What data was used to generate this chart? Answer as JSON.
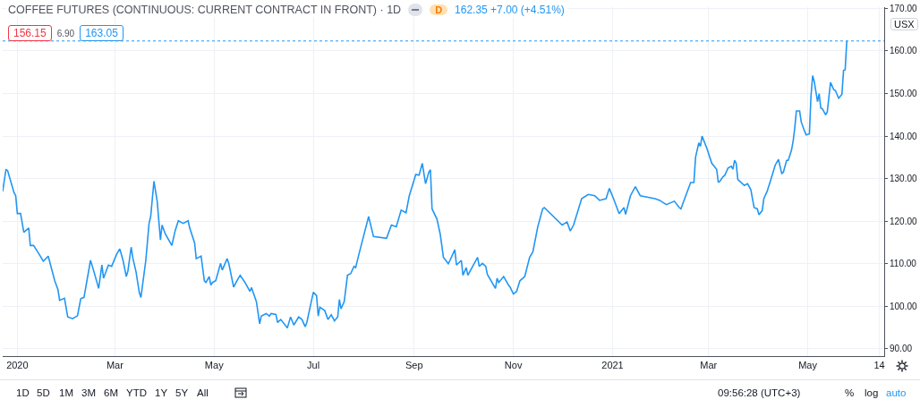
{
  "chart_data": {
    "type": "line",
    "title": "COFFEE FUTURES (CONTINUOUS: CURRENT CONTRACT IN FRONT) · 1D",
    "x": [
      "2019-12-23",
      "2019-12-25",
      "2019-12-26",
      "2019-12-30",
      "2019-12-31",
      "2020-01-01",
      "2020-01-03",
      "2020-01-05",
      "2020-01-08",
      "2020-01-09",
      "2020-01-11",
      "2020-01-14",
      "2020-01-17",
      "2020-01-20",
      "2020-01-24",
      "2020-01-26",
      "2020-01-27",
      "2020-01-30",
      "2020-02-01",
      "2020-02-04",
      "2020-02-07",
      "2020-02-09",
      "2020-02-11",
      "2020-02-15",
      "2020-02-17",
      "2020-02-20",
      "2020-02-22",
      "2020-02-23",
      "2020-02-26",
      "2020-02-28",
      "2020-03-02",
      "2020-03-04",
      "2020-03-06",
      "2020-03-08",
      "2020-03-09",
      "2020-03-11",
      "2020-03-12",
      "2020-03-14",
      "2020-03-16",
      "2020-03-17",
      "2020-03-20",
      "2020-03-22",
      "2020-03-23",
      "2020-03-25",
      "2020-03-27",
      "2020-03-29",
      "2020-03-30",
      "2020-04-01",
      "2020-04-05",
      "2020-04-07",
      "2020-04-09",
      "2020-04-12",
      "2020-04-15",
      "2020-04-16",
      "2020-04-19",
      "2020-04-20",
      "2020-04-23",
      "2020-04-25",
      "2020-04-26",
      "2020-04-28",
      "2020-04-29",
      "2020-04-30",
      "2020-05-02",
      "2020-05-05",
      "2020-05-06",
      "2020-05-09",
      "2020-05-10",
      "2020-05-13",
      "2020-05-15",
      "2020-05-17",
      "2020-05-20",
      "2020-05-23",
      "2020-05-24",
      "2020-05-27",
      "2020-05-29",
      "2020-05-30",
      "2020-06-02",
      "2020-06-04",
      "2020-06-05",
      "2020-06-08",
      "2020-06-09",
      "2020-06-11",
      "2020-06-15",
      "2020-06-17",
      "2020-06-19",
      "2020-06-22",
      "2020-06-24",
      "2020-06-26",
      "2020-06-27",
      "2020-06-29",
      "2020-07-01",
      "2020-07-03",
      "2020-07-04",
      "2020-07-05",
      "2020-07-08",
      "2020-07-10",
      "2020-07-12",
      "2020-07-14",
      "2020-07-16",
      "2020-07-17",
      "2020-07-18",
      "2020-07-20",
      "2020-07-22",
      "2020-07-24",
      "2020-07-26",
      "2020-07-27",
      "2020-07-29",
      "2020-08-04",
      "2020-08-07",
      "2020-08-15",
      "2020-08-18",
      "2020-08-21",
      "2020-08-24",
      "2020-08-27",
      "2020-08-29",
      "2020-09-02",
      "2020-09-04",
      "2020-09-06",
      "2020-09-08",
      "2020-09-10",
      "2020-09-11",
      "2020-09-12",
      "2020-09-15",
      "2020-09-17",
      "2020-09-19",
      "2020-09-22",
      "2020-09-23",
      "2020-09-26",
      "2020-09-27",
      "2020-09-30",
      "2020-10-01",
      "2020-10-03",
      "2020-10-04",
      "2020-10-07",
      "2020-10-10",
      "2020-10-11",
      "2020-10-13",
      "2020-10-15",
      "2020-10-16",
      "2020-10-21",
      "2020-10-22",
      "2020-10-23",
      "2020-10-26",
      "2020-10-29",
      "2020-10-30",
      "2020-11-01",
      "2020-11-03",
      "2020-11-05",
      "2020-11-08",
      "2020-11-11",
      "2020-11-13",
      "2020-11-16",
      "2020-11-19",
      "2020-11-20",
      "2020-12-01",
      "2020-12-04",
      "2020-12-06",
      "2020-12-08",
      "2020-12-13",
      "2020-12-17",
      "2020-12-21",
      "2020-12-24",
      "2020-12-28",
      "2020-12-30",
      "2021-01-02",
      "2021-01-05",
      "2021-01-08",
      "2021-01-09",
      "2021-01-12",
      "2021-01-15",
      "2021-01-18",
      "2021-01-27",
      "2021-01-30",
      "2021-02-03",
      "2021-02-08",
      "2021-02-11",
      "2021-02-12",
      "2021-02-15",
      "2021-02-18",
      "2021-02-20",
      "2021-02-21",
      "2021-02-23",
      "2021-02-24",
      "2021-02-25",
      "2021-02-28",
      "2021-03-03",
      "2021-03-06",
      "2021-03-07",
      "2021-03-08",
      "2021-03-10",
      "2021-03-11",
      "2021-03-13",
      "2021-03-15",
      "2021-03-16",
      "2021-03-17",
      "2021-03-18",
      "2021-03-19",
      "2021-03-23",
      "2021-03-25",
      "2021-03-27",
      "2021-03-29",
      "2021-03-31",
      "2021-04-01",
      "2021-04-03",
      "2021-04-04",
      "2021-04-06",
      "2021-04-08",
      "2021-04-11",
      "2021-04-13",
      "2021-04-15",
      "2021-04-16",
      "2021-04-18",
      "2021-04-19",
      "2021-04-21",
      "2021-04-22",
      "2021-04-23",
      "2021-04-24",
      "2021-04-26",
      "2021-04-27",
      "2021-04-29",
      "2021-04-30",
      "2021-05-02",
      "2021-05-03",
      "2021-05-04",
      "2021-05-05",
      "2021-05-07",
      "2021-05-08",
      "2021-05-09",
      "2021-05-10",
      "2021-05-12",
      "2021-05-13",
      "2021-05-15",
      "2021-05-17",
      "2021-05-18",
      "2021-05-20",
      "2021-05-22",
      "2021-05-23",
      "2021-05-24",
      "2021-05-25"
    ],
    "series": [
      {
        "color": "#2196f3",
        "values": [
          127.0,
          132.1,
          131.9,
          126.7,
          126.0,
          121.8,
          121.8,
          117.4,
          118.4,
          114.3,
          114.3,
          112.5,
          110.6,
          111.8,
          106.0,
          103.9,
          101.4,
          101.9,
          97.5,
          97.1,
          97.8,
          101.8,
          102.1,
          110.8,
          108.3,
          104.2,
          109.7,
          106.6,
          109.7,
          109.4,
          112.2,
          113.5,
          110.8,
          107.0,
          108.3,
          113.9,
          111.4,
          108.1,
          103.2,
          102.1,
          110.8,
          119.5,
          121.1,
          129.4,
          124.7,
          115.6,
          119.1,
          117.0,
          114.3,
          117.7,
          120.1,
          119.5,
          120.1,
          118.4,
          114.9,
          111.2,
          111.8,
          106.0,
          105.6,
          107.0,
          105.0,
          105.6,
          106.0,
          110.1,
          108.5,
          111.2,
          110.1,
          104.5,
          106.0,
          107.3,
          105.6,
          103.5,
          104.4,
          101.1,
          95.9,
          97.7,
          98.3,
          97.7,
          98.3,
          98.1,
          96.2,
          96.9,
          94.9,
          97.5,
          95.6,
          97.5,
          96.9,
          95.2,
          96.2,
          99.8,
          103.3,
          102.5,
          97.7,
          99.8,
          99.0,
          96.9,
          98.0,
          96.6,
          97.5,
          101.6,
          99.4,
          101.1,
          107.3,
          107.7,
          109.4,
          109.1,
          112.2,
          121.1,
          116.4,
          116.0,
          119.1,
          118.7,
          122.6,
          122.0,
          126.0,
          131.0,
          130.8,
          133.6,
          128.8,
          131.5,
          132.1,
          122.9,
          120.5,
          117.0,
          111.5,
          110.0,
          110.8,
          113.3,
          109.7,
          110.8,
          107.3,
          109.1,
          107.3,
          109.4,
          111.5,
          109.4,
          110.1,
          109.4,
          107.5,
          104.2,
          106.6,
          105.6,
          107.0,
          105.0,
          104.5,
          102.9,
          103.5,
          106.0,
          107.0,
          111.5,
          112.8,
          118.7,
          122.9,
          123.2,
          119.1,
          119.8,
          117.7,
          119.1,
          125.3,
          126.3,
          126.0,
          124.9,
          125.3,
          127.7,
          124.9,
          121.8,
          123.2,
          121.6,
          126.0,
          128.1,
          126.0,
          125.3,
          124.9,
          123.9,
          124.7,
          123.2,
          122.9,
          126.0,
          129.1,
          129.1,
          135.0,
          138.4,
          137.6,
          140.0,
          137.1,
          133.6,
          132.2,
          129.1,
          129.4,
          130.5,
          130.8,
          132.5,
          132.9,
          132.2,
          134.3,
          133.6,
          129.8,
          128.4,
          128.8,
          127.4,
          123.2,
          122.9,
          121.5,
          122.5,
          125.3,
          127.0,
          129.4,
          133.2,
          134.5,
          131.2,
          131.5,
          134.3,
          134.3,
          136.7,
          138.8,
          141.9,
          145.9,
          145.9,
          143.3,
          141.2,
          140.3,
          140.5,
          149.5,
          154.2,
          152.8,
          148.1,
          150.0,
          146.6,
          146.4,
          145.0,
          145.7,
          152.6,
          150.9,
          150.7,
          148.9,
          149.8,
          155.4,
          155.6,
          162.35
        ]
      }
    ],
    "xlim": [
      "2019-12-23",
      "2021-06-17"
    ],
    "xticks": [
      {
        "value": "2020-01-01",
        "label": "2020"
      },
      {
        "value": "2020-03-01",
        "label": "Mar"
      },
      {
        "value": "2020-05-01",
        "label": "May"
      },
      {
        "value": "2020-07-01",
        "label": "Jul"
      },
      {
        "value": "2020-09-01",
        "label": "Sep"
      },
      {
        "value": "2020-11-01",
        "label": "Nov"
      },
      {
        "value": "2021-01-01",
        "label": "2021"
      },
      {
        "value": "2021-03-01",
        "label": "Mar"
      },
      {
        "value": "2021-05-01",
        "label": "May"
      },
      {
        "value": "2021-06-14",
        "label": "14"
      }
    ],
    "ylim": [
      88.3,
      170.3
    ],
    "yticks": [
      {
        "value": 90,
        "label": "90.00"
      },
      {
        "value": 100,
        "label": "100.00"
      },
      {
        "value": 110,
        "label": "110.00"
      },
      {
        "value": 120,
        "label": "120.00"
      },
      {
        "value": 130,
        "label": "130.00"
      },
      {
        "value": 140,
        "label": "140.00"
      },
      {
        "value": 150,
        "label": "150.00"
      },
      {
        "value": 160,
        "label": "160.00"
      },
      {
        "value": 170,
        "label": "170.00"
      }
    ],
    "ref_lines": [
      {
        "axis": "y",
        "value": 162.35,
        "color": "#2196f3",
        "line_style": "dotted"
      }
    ],
    "annotations": [
      "156.15",
      "6.90",
      "163.05",
      "162.35  +7.00 (+4.51%)",
      "D",
      "USX",
      "1D",
      "5D",
      "1M",
      "3M",
      "6M",
      "YTD",
      "1Y",
      "5Y",
      "All",
      "09:56:28 (UTC+3)",
      "%",
      "log",
      "auto"
    ],
    "grid": true,
    "marker": "none",
    "line_style": "solid"
  }
}
